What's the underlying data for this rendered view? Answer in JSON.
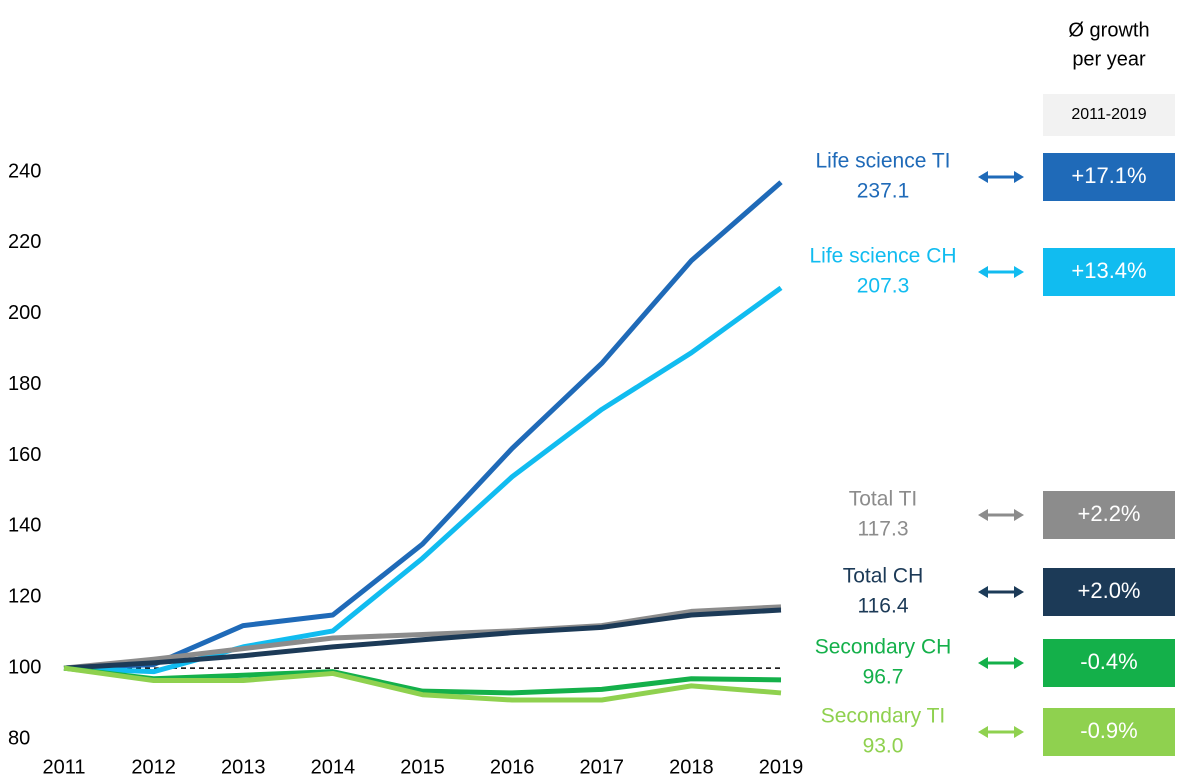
{
  "chart_data": {
    "type": "line",
    "categories": [
      "2011",
      "2012",
      "2013",
      "2014",
      "2015",
      "2016",
      "2017",
      "2018",
      "2019"
    ],
    "ylim": [
      80,
      240
    ],
    "yticks": [
      80,
      100,
      120,
      140,
      160,
      180,
      200,
      220,
      240
    ],
    "reference_line": 100,
    "growth_header": [
      "Ø growth",
      "per year"
    ],
    "period": "2011-2019",
    "series": [
      {
        "name": "Life science TI",
        "color": "#1f6ab8",
        "values": [
          100,
          101,
          112,
          115,
          135,
          162,
          186,
          215,
          237.1
        ],
        "growth": "+17.1%"
      },
      {
        "name": "Life science CH",
        "color": "#11bcf0",
        "values": [
          100,
          99,
          106,
          110.5,
          131,
          154,
          173,
          189,
          207.3
        ],
        "growth": "+13.4%"
      },
      {
        "name": "Total TI",
        "color": "#8c8c8c",
        "values": [
          100,
          102.5,
          105.5,
          108.5,
          109.5,
          110.5,
          112,
          116,
          117.3
        ],
        "growth": "+2.2%"
      },
      {
        "name": "Total CH",
        "color": "#1c3a57",
        "values": [
          100,
          101.5,
          103.5,
          106,
          108,
          110,
          111.5,
          115,
          116.4
        ],
        "growth": "+2.0%"
      },
      {
        "name": "Secondary CH",
        "color": "#14b04a",
        "values": [
          100,
          97,
          98,
          99,
          93.5,
          93,
          94,
          97,
          96.7
        ],
        "growth": "-0.4%"
      },
      {
        "name": "Secondary TI",
        "color": "#8fd14f",
        "values": [
          100,
          96.5,
          96.5,
          98.5,
          92.5,
          91,
          91,
          95,
          93.0
        ],
        "value_labels": [
          null,
          null,
          null,
          null,
          null,
          null,
          null,
          null,
          "93.0"
        ],
        "growth": "-0.9%"
      }
    ]
  }
}
